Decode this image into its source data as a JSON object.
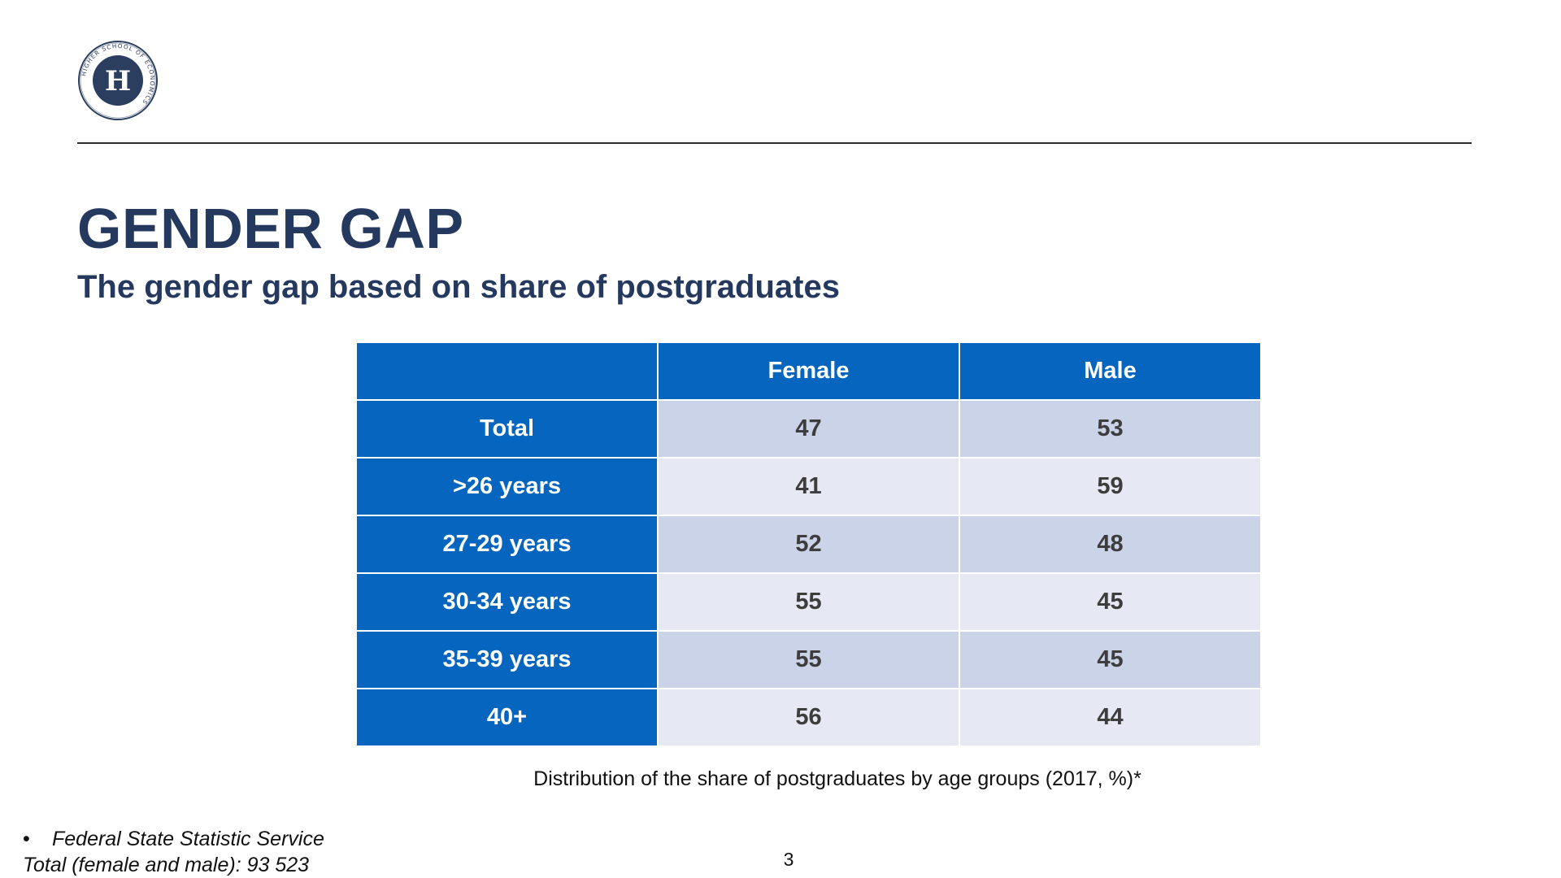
{
  "logo": {
    "ring_text": "HIGHER SCHOOL OF ECONOMICS",
    "monogram": "H",
    "color": "#2c3e5f"
  },
  "header": {
    "title": "GENDER GAP",
    "subtitle": "The gender gap based on share of postgraduates"
  },
  "table": {
    "corner": "",
    "columns": [
      "Female",
      "Male"
    ],
    "rows": [
      {
        "label": "Total",
        "female": "47",
        "male": "53"
      },
      {
        "label": ">26 years",
        "female": "41",
        "male": "59"
      },
      {
        "label": "27-29 years",
        "female": "52",
        "male": "48"
      },
      {
        "label": "30-34 years",
        "female": "55",
        "male": "45"
      },
      {
        "label": "35-39 years",
        "female": "55",
        "male": "45"
      },
      {
        "label": "40+",
        "female": "56",
        "male": "44"
      }
    ],
    "caption": "Distribution of the share of postgraduates by age groups (2017, %)*"
  },
  "footnote": {
    "bullet": "•",
    "source": "Federal State Statistic Service",
    "total": "Total (female and male): 93 523"
  },
  "page_number": "3",
  "colors": {
    "title": "#25395f",
    "header_cell": "#0565bf",
    "row_odd": "#cbd3e8",
    "row_even": "#e6e9f4"
  },
  "chart_data": {
    "type": "table",
    "title": "Distribution of the share of postgraduates by age groups (2017, %)*",
    "categories": [
      "Total",
      ">26 years",
      "27-29 years",
      "30-34 years",
      "35-39 years",
      "40+"
    ],
    "series": [
      {
        "name": "Female",
        "values": [
          47,
          41,
          52,
          55,
          55,
          56
        ]
      },
      {
        "name": "Male",
        "values": [
          53,
          59,
          48,
          45,
          45,
          44
        ]
      }
    ]
  }
}
